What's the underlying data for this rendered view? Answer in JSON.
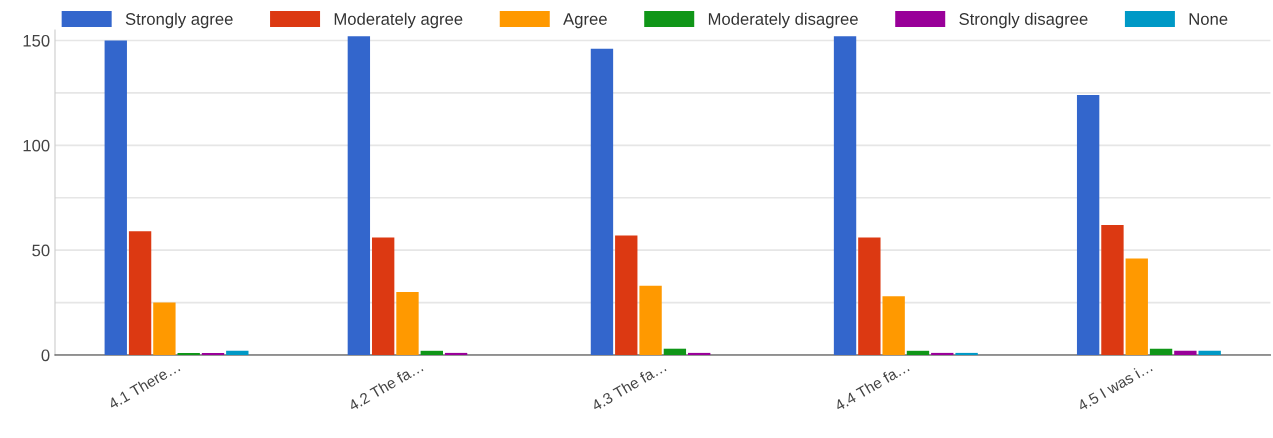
{
  "chart_data": {
    "type": "bar",
    "categories": [
      "4.1 There…",
      "4.2 The fa…",
      "4.3 The fa…",
      "4.4 The fa…",
      "4.5 I was i…"
    ],
    "series": [
      {
        "name": "Strongly agree",
        "color": "#3366cc",
        "values": [
          150,
          152,
          146,
          152,
          124
        ]
      },
      {
        "name": "Moderately agree",
        "color": "#dc3912",
        "values": [
          59,
          56,
          57,
          56,
          62
        ]
      },
      {
        "name": "Agree",
        "color": "#ff9900",
        "values": [
          25,
          30,
          33,
          28,
          46
        ]
      },
      {
        "name": "Moderately disagree",
        "color": "#109618",
        "values": [
          1,
          2,
          3,
          2,
          3
        ]
      },
      {
        "name": "Strongly disagree",
        "color": "#990099",
        "values": [
          1,
          1,
          1,
          1,
          2
        ]
      },
      {
        "name": "None",
        "color": "#0099c6",
        "values": [
          2,
          0,
          0,
          1,
          2
        ]
      }
    ],
    "ylim": [
      0,
      155
    ],
    "yticks": [
      0,
      {
        "value": 25,
        "label": null
      },
      50,
      {
        "value": 75,
        "label": null
      },
      100,
      {
        "value": 125,
        "label": null
      },
      150
    ],
    "grid": "y",
    "legend": "top"
  }
}
